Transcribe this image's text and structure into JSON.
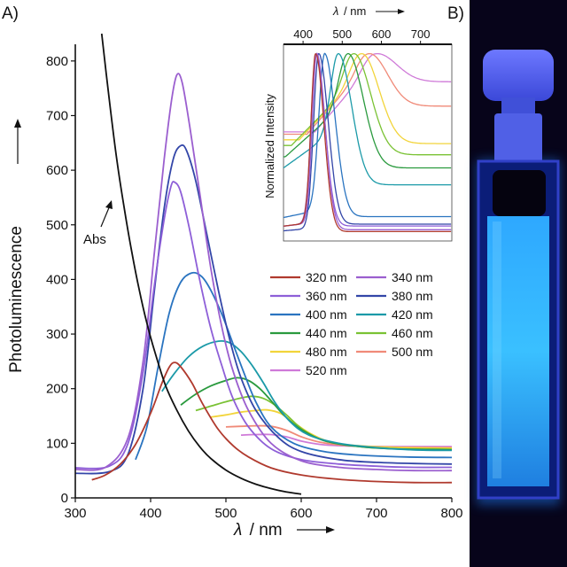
{
  "panels": {
    "a": "A)",
    "b": "B)"
  },
  "photo": {
    "description_icon": "cuvette-photo",
    "glow_color": "#36b8ff",
    "frame_color": "#1a1040",
    "background": "#07041a"
  },
  "chart_data": [
    {
      "type": "line",
      "title": "",
      "ylabel": "Photoluminescence",
      "xlabel_symbol": "λ",
      "xlabel_unit": "/ nm",
      "xlim": [
        300,
        800
      ],
      "ylim": [
        0,
        850
      ],
      "xticks": [
        300,
        400,
        500,
        600,
        700,
        800
      ],
      "yticks": [
        0,
        100,
        200,
        300,
        400,
        500,
        600,
        700,
        800
      ],
      "annotation": "Abs",
      "absorbance": {
        "label": "Abs",
        "color": "#111111",
        "points": [
          [
            335,
            850
          ],
          [
            345,
            730
          ],
          [
            355,
            620
          ],
          [
            365,
            530
          ],
          [
            375,
            450
          ],
          [
            385,
            380
          ],
          [
            395,
            320
          ],
          [
            405,
            270
          ],
          [
            420,
            205
          ],
          [
            435,
            160
          ],
          [
            450,
            123
          ],
          [
            465,
            94
          ],
          [
            480,
            72
          ],
          [
            500,
            51
          ],
          [
            520,
            36
          ],
          [
            540,
            25
          ],
          [
            560,
            17
          ],
          [
            580,
            11
          ],
          [
            600,
            7
          ]
        ]
      },
      "legend": {
        "placement": "right",
        "entries": [
          "320 nm",
          "340 nm",
          "360 nm",
          "380 nm",
          "400 nm",
          "420 nm",
          "440 nm",
          "460 nm",
          "480 nm",
          "500 nm",
          "520 nm"
        ]
      },
      "series": [
        {
          "name": "320 nm",
          "color": "#b03a2e",
          "points": [
            [
              322,
              33
            ],
            [
              340,
              42
            ],
            [
              360,
              62
            ],
            [
              380,
              98
            ],
            [
              400,
              155
            ],
            [
              415,
              210
            ],
            [
              425,
              240
            ],
            [
              432,
              248
            ],
            [
              440,
              240
            ],
            [
              455,
              210
            ],
            [
              470,
              170
            ],
            [
              490,
              125
            ],
            [
              510,
              95
            ],
            [
              530,
              75
            ],
            [
              560,
              55
            ],
            [
              600,
              42
            ],
            [
              650,
              34
            ],
            [
              700,
              30
            ],
            [
              750,
              28
            ],
            [
              800,
              28
            ]
          ]
        },
        {
          "name": "340 nm",
          "color": "#9b5fcf",
          "points": [
            [
              300,
              52
            ],
            [
              340,
              56
            ],
            [
              370,
              110
            ],
            [
              390,
              250
            ],
            [
              405,
              450
            ],
            [
              418,
              620
            ],
            [
              428,
              730
            ],
            [
              435,
              775
            ],
            [
              442,
              760
            ],
            [
              452,
              680
            ],
            [
              465,
              560
            ],
            [
              480,
              420
            ],
            [
              495,
              310
            ],
            [
              510,
              230
            ],
            [
              530,
              160
            ],
            [
              560,
              100
            ],
            [
              600,
              68
            ],
            [
              650,
              56
            ],
            [
              700,
              52
            ],
            [
              750,
              50
            ],
            [
              800,
              50
            ]
          ]
        },
        {
          "name": "360 nm",
          "color": "#8e5fd8",
          "points": [
            [
              300,
              55
            ],
            [
              345,
              58
            ],
            [
              370,
              100
            ],
            [
              390,
              230
            ],
            [
              405,
              390
            ],
            [
              418,
              510
            ],
            [
              427,
              570
            ],
            [
              432,
              578
            ],
            [
              440,
              560
            ],
            [
              452,
              490
            ],
            [
              465,
              400
            ],
            [
              480,
              310
            ],
            [
              495,
              240
            ],
            [
              510,
              180
            ],
            [
              530,
              130
            ],
            [
              560,
              90
            ],
            [
              600,
              70
            ],
            [
              650,
              62
            ],
            [
              700,
              58
            ],
            [
              750,
              56
            ],
            [
              800,
              56
            ]
          ]
        },
        {
          "name": "380 nm",
          "color": "#3346a8",
          "points": [
            [
              300,
              45
            ],
            [
              345,
              48
            ],
            [
              370,
              80
            ],
            [
              390,
              200
            ],
            [
              405,
              380
            ],
            [
              418,
              530
            ],
            [
              430,
              620
            ],
            [
              440,
              645
            ],
            [
              448,
              635
            ],
            [
              460,
              580
            ],
            [
              475,
              480
            ],
            [
              490,
              380
            ],
            [
              505,
              290
            ],
            [
              520,
              220
            ],
            [
              540,
              160
            ],
            [
              570,
              110
            ],
            [
              600,
              85
            ],
            [
              650,
              70
            ],
            [
              700,
              65
            ],
            [
              750,
              63
            ],
            [
              800,
              62
            ]
          ]
        },
        {
          "name": "400 nm",
          "color": "#2a74c0",
          "points": [
            [
              380,
              70
            ],
            [
              395,
              130
            ],
            [
              410,
              240
            ],
            [
              425,
              340
            ],
            [
              440,
              395
            ],
            [
              455,
              412
            ],
            [
              468,
              405
            ],
            [
              480,
              380
            ],
            [
              495,
              335
            ],
            [
              510,
              280
            ],
            [
              525,
              225
            ],
            [
              540,
              175
            ],
            [
              560,
              130
            ],
            [
              590,
              100
            ],
            [
              630,
              85
            ],
            [
              680,
              78
            ],
            [
              740,
              75
            ],
            [
              800,
              74
            ]
          ]
        },
        {
          "name": "420 nm",
          "color": "#1b9aa8",
          "points": [
            [
              415,
              195
            ],
            [
              430,
              225
            ],
            [
              450,
              258
            ],
            [
              470,
              278
            ],
            [
              490,
              287
            ],
            [
              505,
              284
            ],
            [
              520,
              268
            ],
            [
              535,
              242
            ],
            [
              550,
              210
            ],
            [
              565,
              175
            ],
            [
              585,
              140
            ],
            [
              610,
              115
            ],
            [
              650,
              100
            ],
            [
              700,
              92
            ],
            [
              750,
              88
            ],
            [
              800,
              87
            ]
          ]
        },
        {
          "name": "440 nm",
          "color": "#2a9a3e",
          "points": [
            [
              440,
              170
            ],
            [
              460,
              190
            ],
            [
              480,
              205
            ],
            [
              500,
              215
            ],
            [
              515,
              220
            ],
            [
              530,
              215
            ],
            [
              545,
              200
            ],
            [
              560,
              178
            ],
            [
              578,
              150
            ],
            [
              600,
              125
            ],
            [
              630,
              105
            ],
            [
              670,
              95
            ],
            [
              720,
              90
            ],
            [
              800,
              88
            ]
          ]
        },
        {
          "name": "460 nm",
          "color": "#7ac234",
          "points": [
            [
              460,
              160
            ],
            [
              480,
              168
            ],
            [
              500,
              176
            ],
            [
              520,
              183
            ],
            [
              535,
              186
            ],
            [
              550,
              182
            ],
            [
              565,
              170
            ],
            [
              582,
              150
            ],
            [
              602,
              125
            ],
            [
              630,
              105
            ],
            [
              670,
              95
            ],
            [
              720,
              90
            ],
            [
              800,
              89
            ]
          ]
        },
        {
          "name": "480 nm",
          "color": "#f2d43a",
          "points": [
            [
              480,
              148
            ],
            [
              500,
              152
            ],
            [
              520,
              157
            ],
            [
              540,
              160
            ],
            [
              555,
              161
            ],
            [
              572,
              155
            ],
            [
              590,
              138
            ],
            [
              612,
              118
            ],
            [
              640,
              102
            ],
            [
              680,
              95
            ],
            [
              740,
              92
            ],
            [
              800,
              91
            ]
          ]
        },
        {
          "name": "500 nm",
          "color": "#f08a78",
          "points": [
            [
              500,
              130
            ],
            [
              520,
              131
            ],
            [
              540,
              132
            ],
            [
              560,
              131
            ],
            [
              580,
              124
            ],
            [
              600,
              112
            ],
            [
              625,
              102
            ],
            [
              660,
              96
            ],
            [
              720,
              93
            ],
            [
              800,
              92
            ]
          ]
        },
        {
          "name": "520 nm",
          "color": "#cf7ad8",
          "points": [
            [
              520,
              115
            ],
            [
              540,
              116
            ],
            [
              560,
              116
            ],
            [
              580,
              112
            ],
            [
              600,
              104
            ],
            [
              625,
              98
            ],
            [
              660,
              95
            ],
            [
              720,
              94
            ],
            [
              800,
              94
            ]
          ]
        }
      ]
    },
    {
      "type": "line",
      "title": "",
      "ylabel": "Normalized Intensity",
      "xlabel_symbol": "λ",
      "xlabel_unit": "/ nm",
      "xlim": [
        350,
        780
      ],
      "ylim": [
        0,
        1.05
      ],
      "xticks": [
        400,
        500,
        600,
        700
      ],
      "series": [
        {
          "name": "320 nm",
          "color": "#b03a2e",
          "peak": 432,
          "width": 30,
          "tail": 0.05,
          "start": 0.1
        },
        {
          "name": "340 nm",
          "color": "#9b5fcf",
          "peak": 435,
          "width": 30,
          "tail": 0.06,
          "start": 0.1
        },
        {
          "name": "360 nm",
          "color": "#8e5fd8",
          "peak": 433,
          "width": 32,
          "tail": 0.08,
          "start": 0.1
        },
        {
          "name": "380 nm",
          "color": "#3346a8",
          "peak": 440,
          "width": 34,
          "tail": 0.09,
          "start": 0.07
        },
        {
          "name": "400 nm",
          "color": "#2a74c0",
          "peak": 455,
          "width": 38,
          "tail": 0.13,
          "start": 0.17
        },
        {
          "name": "420 nm",
          "color": "#1b9aa8",
          "peak": 490,
          "width": 48,
          "tail": 0.3,
          "start": 0.6
        },
        {
          "name": "440 nm",
          "color": "#2a9a3e",
          "peak": 515,
          "width": 55,
          "tail": 0.39,
          "start": 0.75
        },
        {
          "name": "460 nm",
          "color": "#7ac234",
          "peak": 530,
          "width": 60,
          "tail": 0.46,
          "start": 0.85
        },
        {
          "name": "480 nm",
          "color": "#f2d43a",
          "peak": 550,
          "width": 62,
          "tail": 0.52,
          "start": 0.9
        },
        {
          "name": "500 nm",
          "color": "#f08a78",
          "peak": 570,
          "width": 65,
          "tail": 0.72,
          "start": 0.95
        },
        {
          "name": "520 nm",
          "color": "#cf7ad8",
          "peak": 590,
          "width": 70,
          "tail": 0.85,
          "start": 0.97
        }
      ]
    }
  ]
}
